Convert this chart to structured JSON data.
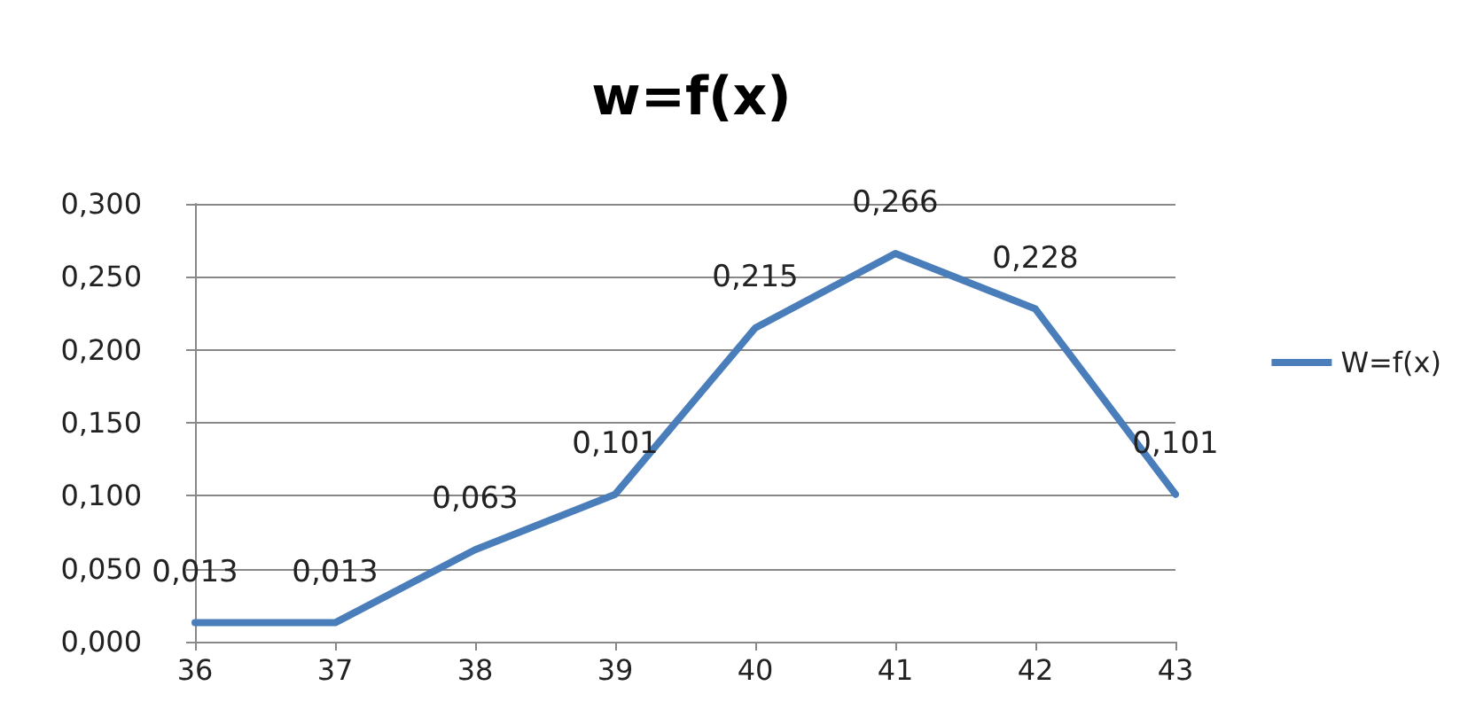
{
  "chart_data": {
    "type": "line",
    "title": "w=f(x)",
    "x": [
      36,
      37,
      38,
      39,
      40,
      41,
      42,
      43
    ],
    "series": [
      {
        "name": "W=f(x)",
        "color": "#4a7ebb",
        "values": [
          0.013,
          0.013,
          0.063,
          0.101,
          0.215,
          0.266,
          0.228,
          0.101
        ],
        "value_labels": [
          "0,013",
          "0,013",
          "0,063",
          "0,101",
          "0,215",
          "0,266",
          "0,228",
          "0,101"
        ]
      }
    ],
    "xlim": [
      36,
      43
    ],
    "xticks": [
      36,
      37,
      38,
      39,
      40,
      41,
      42,
      43
    ],
    "ylim": [
      0,
      0.3
    ],
    "yticks": [
      {
        "value": 0,
        "label": "0,000"
      },
      {
        "value": 0.05,
        "label": "0,050"
      },
      {
        "value": 0.1,
        "label": "0,100"
      },
      {
        "value": 0.15,
        "label": "0,150"
      },
      {
        "value": 0.2,
        "label": "0,200"
      },
      {
        "value": 0.25,
        "label": "0,250"
      },
      {
        "value": 0.3,
        "label": "0,300"
      }
    ],
    "grid": "y",
    "legend": "right",
    "marker": "none",
    "line_style": "solid"
  }
}
